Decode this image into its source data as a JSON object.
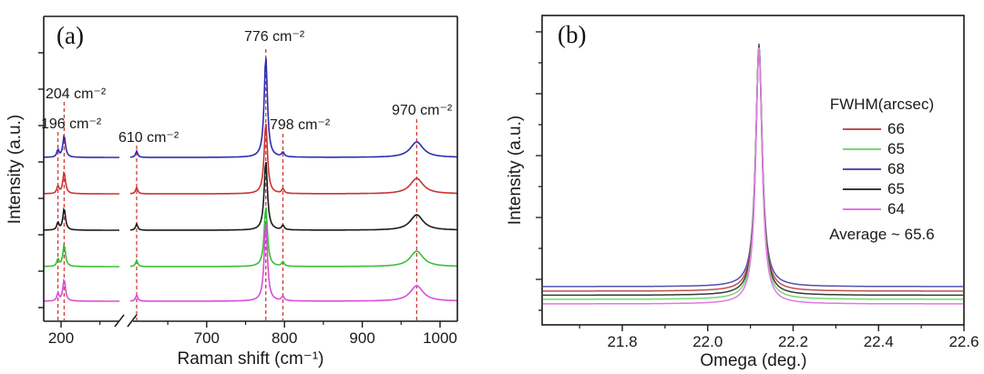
{
  "chart_data": [
    {
      "type": "line",
      "panel": "a",
      "panel_label": "(a)",
      "xlabel": "Raman shift (cm⁻¹)",
      "ylabel": "Intensity (a.u.)",
      "x_ticks_major": [
        "200",
        "700",
        "800",
        "900",
        "1000"
      ],
      "x_ticks_minor": [
        250,
        650,
        750,
        850,
        950
      ],
      "axis_break_between": [
        276,
        600
      ],
      "x_range_left": [
        178,
        276
      ],
      "x_range_right": [
        602,
        1022
      ],
      "guide_color": "#d13b3b",
      "grid": "off",
      "annotations": [
        {
          "text": "196 cm⁻²",
          "x": 196
        },
        {
          "text": "204 cm⁻²",
          "x": 204
        },
        {
          "text": "610 cm⁻²",
          "x": 610
        },
        {
          "text": "776 cm⁻²",
          "x": 776
        },
        {
          "text": "798 cm⁻²",
          "x": 798
        },
        {
          "text": "970 cm⁻²",
          "x": 970
        }
      ],
      "common_peaks": [
        {
          "x": 196,
          "height": 8,
          "width": 1.6
        },
        {
          "x": 204,
          "height": 24,
          "width": 2.0
        },
        {
          "x": 610,
          "height": 7,
          "width": 1.6
        },
        {
          "x": 798,
          "height": 5,
          "width": 1.8
        },
        {
          "x": 970,
          "height": 17,
          "width": 10
        }
      ],
      "main_peak_x": 776,
      "main_peak_width": 2.5,
      "series": [
        {
          "name": "spectrum-blue",
          "color": "#2e2eae",
          "main_peak_height": 111
        },
        {
          "name": "spectrum-red",
          "color": "#c93434",
          "main_peak_height": 78
        },
        {
          "name": "spectrum-black",
          "color": "#1c1c1c",
          "main_peak_height": 76
        },
        {
          "name": "spectrum-green",
          "color": "#3abf3a",
          "main_peak_height": 66
        },
        {
          "name": "spectrum-magenta",
          "color": "#d94ed9",
          "main_peak_height": 86
        }
      ]
    },
    {
      "type": "line",
      "panel": "b",
      "panel_label": "(b)",
      "xlabel": "Omega (deg.)",
      "ylabel": "Intensity (a.u.)",
      "x_ticks_major": [
        "21.8",
        "22.0",
        "22.2",
        "22.4",
        "22.6"
      ],
      "x_ticks_minor": [
        21.7,
        21.9,
        22.1,
        22.3,
        22.5
      ],
      "x_range": [
        21.61,
        22.6
      ],
      "peak_center": 22.12,
      "grid": "off",
      "series": [
        {
          "name": "rocking-red",
          "color": "#c05050",
          "fwhm_arcsec": "66"
        },
        {
          "name": "rocking-green",
          "color": "#74da74",
          "fwhm_arcsec": "65"
        },
        {
          "name": "rocking-blue",
          "color": "#5151b5",
          "fwhm_arcsec": "68"
        },
        {
          "name": "rocking-black",
          "color": "#3a3a3a",
          "fwhm_arcsec": "65"
        },
        {
          "name": "rocking-magenta",
          "color": "#e279e2",
          "fwhm_arcsec": "64"
        }
      ],
      "legend": {
        "title": "FWHM(arcsec)",
        "average_note": "Average ~ 65.6"
      }
    }
  ]
}
